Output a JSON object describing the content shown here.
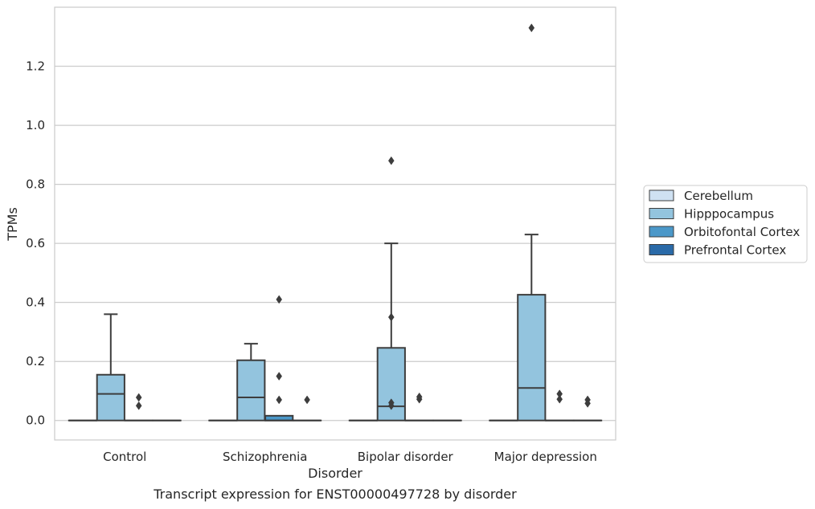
{
  "caption": "Transcript expression for ENST00000497728 by disorder",
  "chart_data": {
    "type": "box",
    "xlabel": "Disorder",
    "ylabel": "TPMs",
    "ylim": [
      -0.066,
      1.4
    ],
    "yticks": [
      0.0,
      0.2,
      0.4,
      0.6,
      0.8,
      1.0,
      1.2
    ],
    "ytick_labels": [
      "0.0",
      "0.2",
      "0.4",
      "0.6",
      "0.8",
      "1.0",
      "1.2"
    ],
    "grid": "horizontal",
    "legend_position": "right",
    "categories": [
      "Control",
      "Schizophrenia",
      "Bipolar disorder",
      "Major depression"
    ],
    "series": [
      {
        "name": "Cerebellum",
        "color": "#cfe1f2",
        "boxes": [
          {
            "whislo": 0,
            "q1": 0,
            "med": 0,
            "q3": 0,
            "whishi": 0,
            "fliers": []
          },
          {
            "whislo": 0,
            "q1": 0,
            "med": 0,
            "q3": 0,
            "whishi": 0,
            "fliers": []
          },
          {
            "whislo": 0,
            "q1": 0,
            "med": 0,
            "q3": 0,
            "whishi": 0,
            "fliers": []
          },
          {
            "whislo": 0,
            "q1": 0,
            "med": 0,
            "q3": 0,
            "whishi": 0,
            "fliers": []
          }
        ]
      },
      {
        "name": "Hipppocampus",
        "color": "#93c4de",
        "boxes": [
          {
            "whislo": 0,
            "q1": 0,
            "med": 0.09,
            "q3": 0.155,
            "whishi": 0.36,
            "fliers": []
          },
          {
            "whislo": 0,
            "q1": 0,
            "med": 0.078,
            "q3": 0.204,
            "whishi": 0.26,
            "fliers": []
          },
          {
            "whislo": 0,
            "q1": 0,
            "med": 0.048,
            "q3": 0.246,
            "whishi": 0.6,
            "fliers": [
              0.35,
              0.88,
              0.06,
              0.05
            ]
          },
          {
            "whislo": 0,
            "q1": 0,
            "med": 0.11,
            "q3": 0.426,
            "whishi": 0.63,
            "fliers": [
              1.33
            ]
          }
        ]
      },
      {
        "name": "Orbitofontal Cortex",
        "color": "#4b98c9",
        "boxes": [
          {
            "whislo": 0,
            "q1": 0,
            "med": 0,
            "q3": 0,
            "whishi": 0,
            "fliers": [
              0.078,
              0.05
            ]
          },
          {
            "whislo": 0,
            "q1": 0,
            "med": 0,
            "q3": 0.016,
            "whishi": 0.016,
            "fliers": [
              0.41,
              0.15,
              0.07
            ]
          },
          {
            "whislo": 0,
            "q1": 0,
            "med": 0,
            "q3": 0,
            "whishi": 0,
            "fliers": [
              0.08,
              0.072
            ]
          },
          {
            "whislo": 0,
            "q1": 0,
            "med": 0,
            "q3": 0,
            "whishi": 0,
            "fliers": [
              0.09,
              0.072
            ]
          }
        ]
      },
      {
        "name": "Prefrontal Cortex",
        "color": "#2a6aa8",
        "boxes": [
          {
            "whislo": 0,
            "q1": 0,
            "med": 0,
            "q3": 0,
            "whishi": 0,
            "fliers": []
          },
          {
            "whislo": 0,
            "q1": 0,
            "med": 0,
            "q3": 0,
            "whishi": 0,
            "fliers": [
              0.07
            ]
          },
          {
            "whislo": 0,
            "q1": 0,
            "med": 0,
            "q3": 0,
            "whishi": 0,
            "fliers": []
          },
          {
            "whislo": 0,
            "q1": 0,
            "med": 0,
            "q3": 0,
            "whishi": 0,
            "fliers": [
              0.07,
              0.058
            ]
          }
        ]
      }
    ]
  }
}
